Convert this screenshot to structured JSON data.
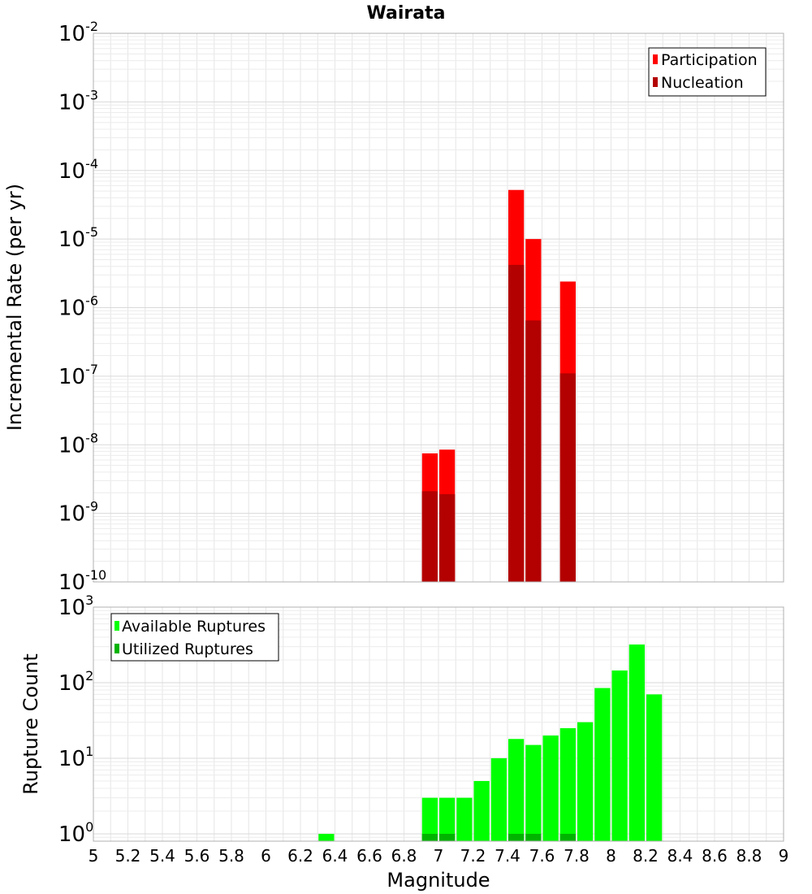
{
  "chart_data": {
    "title": "Wairata",
    "xlabel": "Magnitude",
    "xlim": [
      5,
      9
    ],
    "x_ticks": [
      "5",
      "5.2",
      "5.4",
      "5.6",
      "5.8",
      "6",
      "6.2",
      "6.4",
      "6.6",
      "6.8",
      "7",
      "7.2",
      "7.4",
      "7.6",
      "7.8",
      "8",
      "8.2",
      "8.4",
      "8.6",
      "8.8",
      "9"
    ],
    "bin_width": 0.1,
    "panels": [
      {
        "type": "bar",
        "yscale": "log",
        "ylabel": "Incremental Rate (per yr)",
        "ylim_exp": [
          -10,
          -2
        ],
        "y_tick_labels": [
          {
            "base": "10",
            "exp": "-2"
          },
          {
            "base": "10",
            "exp": "-3"
          },
          {
            "base": "10",
            "exp": "-4"
          },
          {
            "base": "10",
            "exp": "-5"
          },
          {
            "base": "10",
            "exp": "-6"
          },
          {
            "base": "10",
            "exp": "-7"
          },
          {
            "base": "10",
            "exp": "-8"
          },
          {
            "base": "10",
            "exp": "-9"
          },
          {
            "base": "10",
            "exp": "-10"
          }
        ],
        "legend": {
          "position": "top-right",
          "entries": [
            "Participation",
            "Nucleation"
          ]
        },
        "series": [
          {
            "name": "Participation",
            "color": "#ff0000",
            "x": [
              6.95,
              7.05,
              7.45,
              7.55,
              7.75
            ],
            "values": [
              7.5e-09,
              8.5e-09,
              5.2e-05,
              1e-05,
              2.4e-06
            ]
          },
          {
            "name": "Nucleation",
            "color": "#b30000",
            "x": [
              6.95,
              7.05,
              7.45,
              7.55,
              7.75
            ],
            "values": [
              2.1e-09,
              1.9e-09,
              4.2e-06,
              6.5e-07,
              1.1e-07
            ]
          }
        ]
      },
      {
        "type": "bar",
        "yscale": "log",
        "ylabel": "Rupture Count",
        "ylim": [
          0.8,
          1000
        ],
        "y_tick_labels": [
          {
            "base": "10",
            "exp": "3",
            "value": 1000
          },
          {
            "base": "10",
            "exp": "2",
            "value": 100
          },
          {
            "base": "10",
            "exp": "1",
            "value": 10
          },
          {
            "base": "10",
            "exp": "0",
            "value": 1
          }
        ],
        "legend": {
          "position": "top-left",
          "entries": [
            "Available Ruptures",
            "Utilized Ruptures"
          ]
        },
        "series": [
          {
            "name": "Available Ruptures",
            "color": "#00ff00",
            "x": [
              6.35,
              6.95,
              7.05,
              7.15,
              7.25,
              7.35,
              7.45,
              7.55,
              7.65,
              7.75,
              7.85,
              7.95,
              8.05,
              8.15,
              8.25
            ],
            "values": [
              1,
              3,
              3,
              3,
              5,
              10,
              18,
              15,
              20,
              25,
              30,
              85,
              145,
              320,
              70
            ]
          },
          {
            "name": "Utilized Ruptures",
            "color": "#00b300",
            "x": [
              6.95,
              7.05,
              7.45,
              7.55,
              7.75
            ],
            "values": [
              1,
              1,
              1,
              1,
              1
            ]
          }
        ]
      }
    ]
  }
}
